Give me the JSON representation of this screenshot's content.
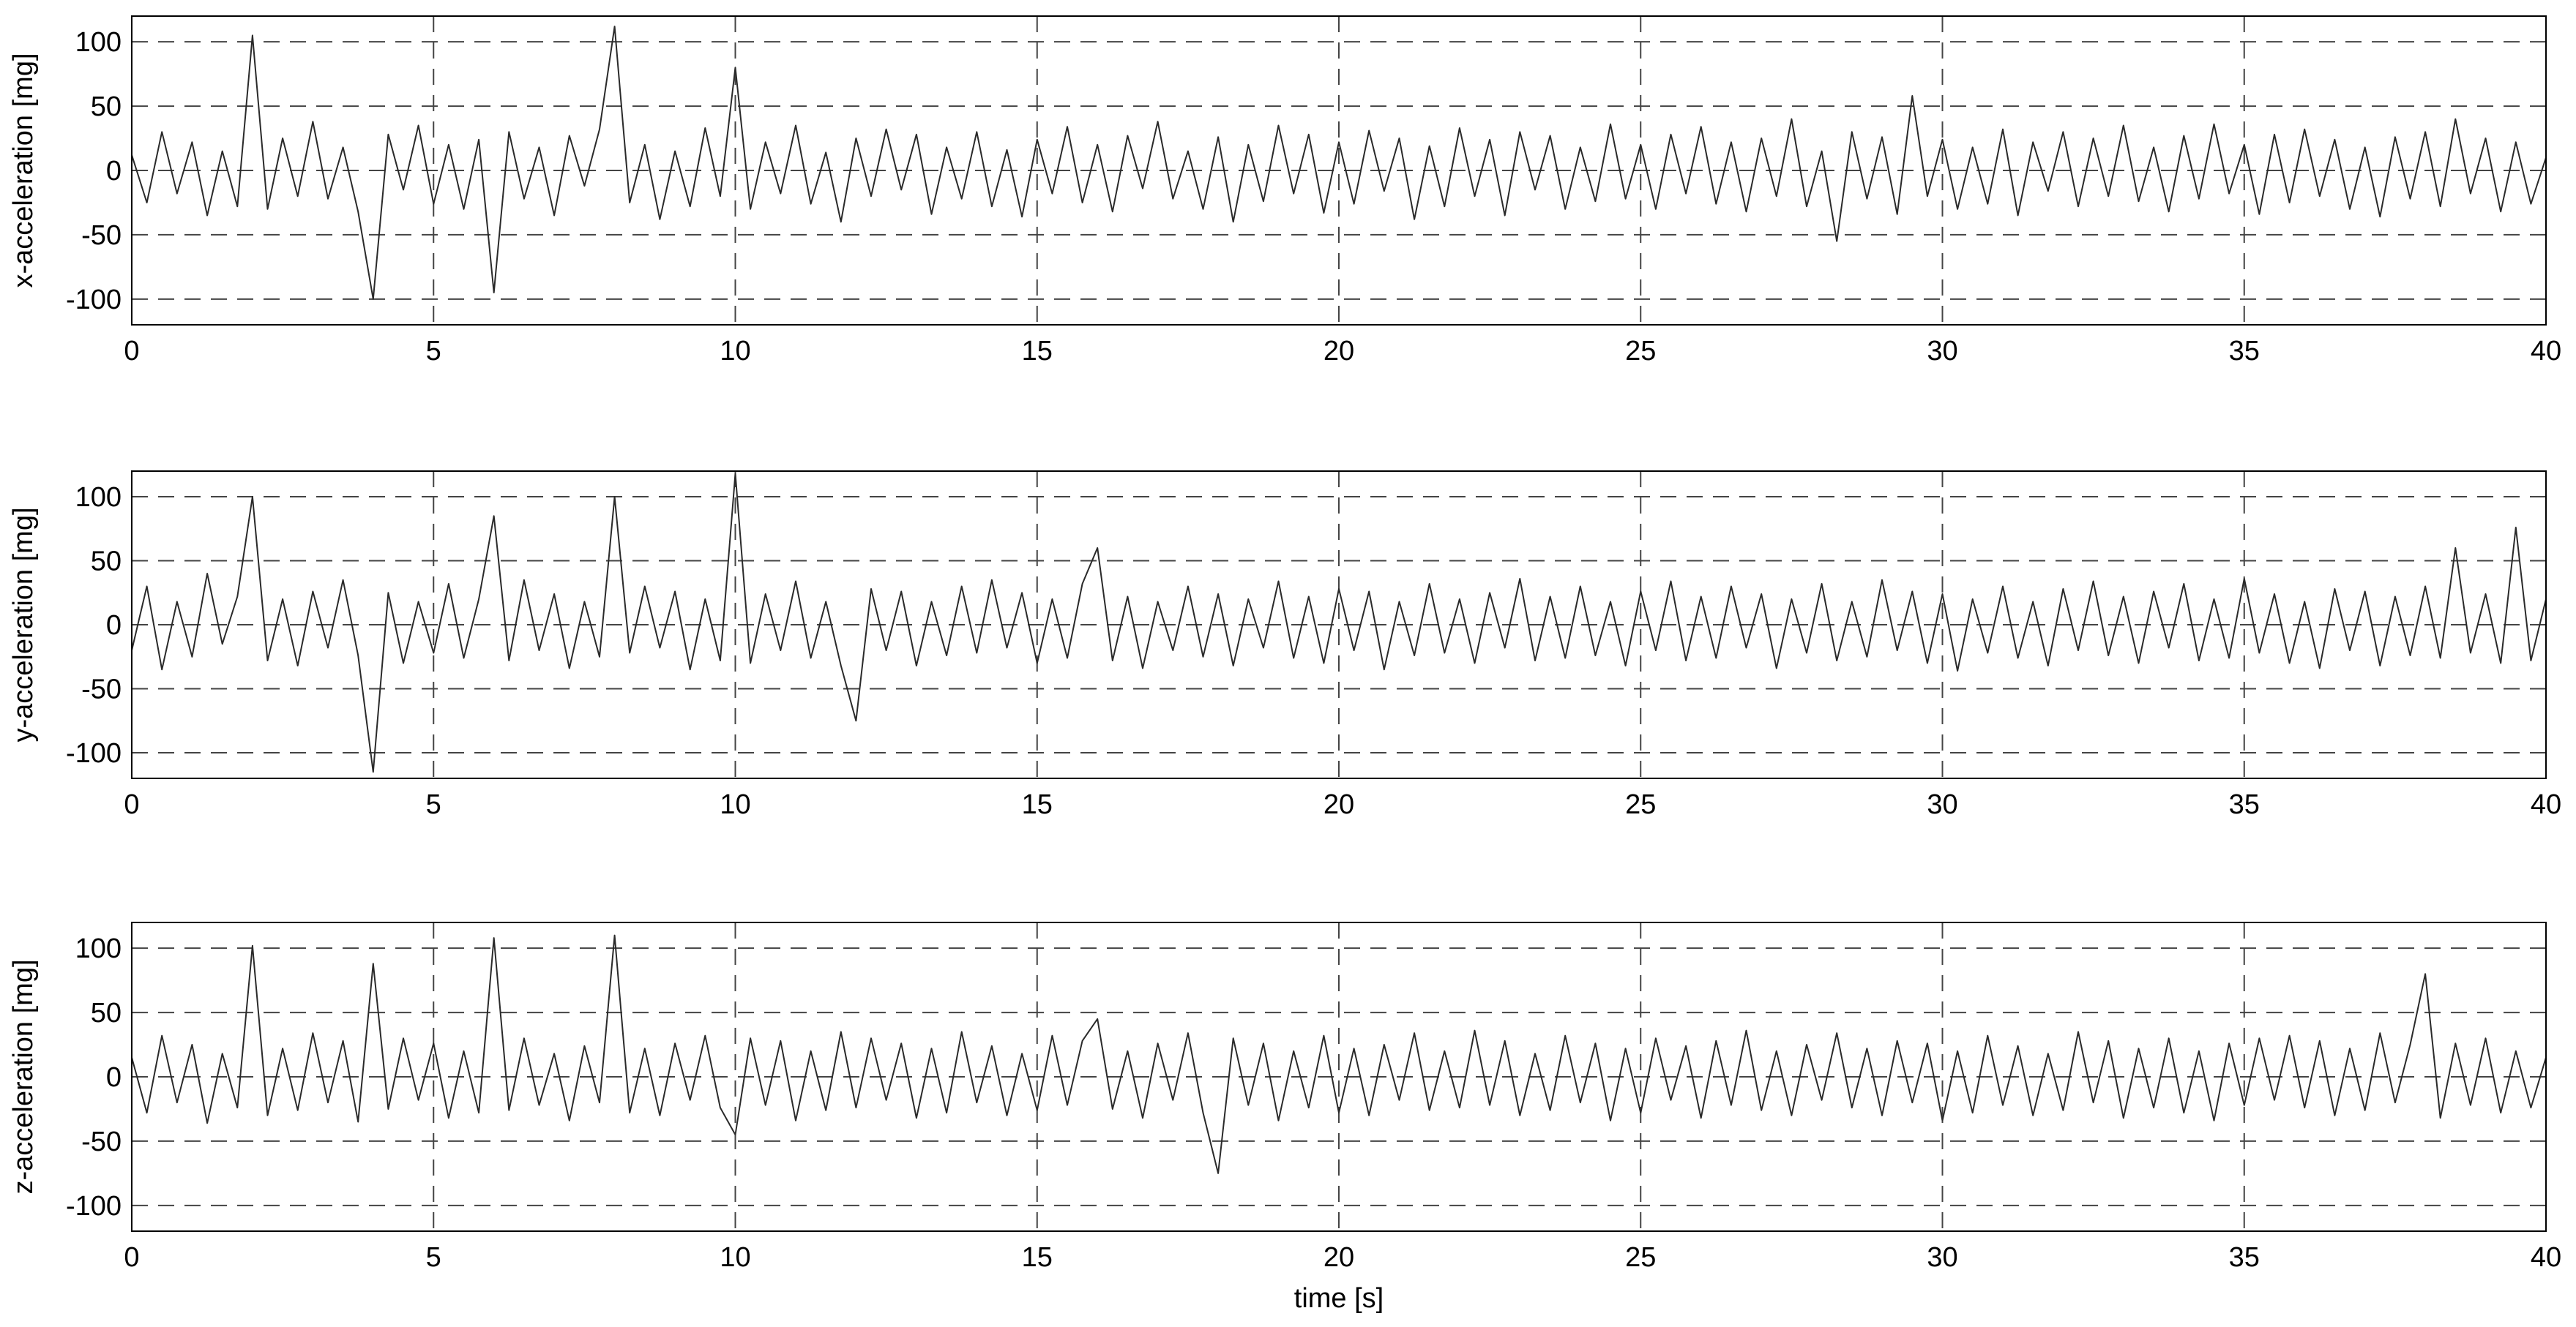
{
  "chart_data": [
    {
      "type": "line",
      "ylabel": "x-acceleration [mg]",
      "color": "#2a2a2a",
      "grid": true,
      "xlim": [
        0,
        40
      ],
      "xticks": [
        0,
        5,
        10,
        15,
        20,
        25,
        30,
        35,
        40
      ],
      "ylim": [
        -120,
        120
      ],
      "yticks": [
        -100,
        -50,
        0,
        50,
        100
      ],
      "x": [
        0,
        0.25,
        0.5,
        0.75,
        1,
        1.25,
        1.5,
        1.75,
        2,
        2.25,
        2.5,
        2.75,
        3,
        3.25,
        3.5,
        3.75,
        4,
        4.25,
        4.5,
        4.75,
        5,
        5.25,
        5.5,
        5.75,
        6,
        6.25,
        6.5,
        6.75,
        7,
        7.25,
        7.5,
        7.75,
        8,
        8.25,
        8.5,
        8.75,
        9,
        9.25,
        9.5,
        9.75,
        10,
        10.25,
        10.5,
        10.75,
        11,
        11.25,
        11.5,
        11.75,
        12,
        12.25,
        12.5,
        12.75,
        13,
        13.25,
        13.5,
        13.75,
        14,
        14.25,
        14.5,
        14.75,
        15,
        15.25,
        15.5,
        15.75,
        16,
        16.25,
        16.5,
        16.75,
        17,
        17.25,
        17.5,
        17.75,
        18,
        18.25,
        18.5,
        18.75,
        19,
        19.25,
        19.5,
        19.75,
        20,
        20.25,
        20.5,
        20.75,
        21,
        21.25,
        21.5,
        21.75,
        22,
        22.25,
        22.5,
        22.75,
        23,
        23.25,
        23.5,
        23.75,
        24,
        24.25,
        24.5,
        24.75,
        25,
        25.25,
        25.5,
        25.75,
        26,
        26.25,
        26.5,
        26.75,
        27,
        27.25,
        27.5,
        27.75,
        28,
        28.25,
        28.5,
        28.75,
        29,
        29.25,
        29.5,
        29.75,
        30,
        30.25,
        30.5,
        30.75,
        31,
        31.25,
        31.5,
        31.75,
        32,
        32.25,
        32.5,
        32.75,
        33,
        33.25,
        33.5,
        33.75,
        34,
        34.25,
        34.5,
        34.75,
        35,
        35.25,
        35.5,
        35.75,
        36,
        36.25,
        36.5,
        36.75,
        37,
        37.25,
        37.5,
        37.75,
        38,
        38.25,
        38.5,
        38.75,
        39,
        39.25,
        39.5,
        39.75,
        40
      ],
      "values": [
        12,
        -25,
        30,
        -18,
        22,
        -35,
        15,
        -28,
        105,
        -30,
        25,
        -20,
        38,
        -22,
        18,
        -32,
        -100,
        28,
        -15,
        35,
        -26,
        20,
        -30,
        24,
        -95,
        30,
        -22,
        18,
        -35,
        27,
        -12,
        32,
        112,
        -25,
        20,
        -38,
        15,
        -28,
        33,
        -20,
        80,
        -30,
        22,
        -18,
        35,
        -26,
        14,
        -40,
        25,
        -20,
        32,
        -15,
        28,
        -34,
        18,
        -22,
        30,
        -28,
        16,
        -36,
        24,
        -18,
        34,
        -25,
        20,
        -32,
        27,
        -14,
        38,
        -22,
        15,
        -30,
        26,
        -40,
        20,
        -24,
        35,
        -18,
        28,
        -33,
        22,
        -26,
        31,
        -16,
        25,
        -38,
        19,
        -28,
        33,
        -20,
        24,
        -35,
        30,
        -15,
        27,
        -30,
        18,
        -24,
        36,
        -22,
        20,
        -30,
        28,
        -18,
        34,
        -26,
        22,
        -32,
        25,
        -20,
        40,
        -28,
        15,
        -55,
        30,
        -22,
        26,
        -34,
        58,
        -20,
        24,
        -30,
        18,
        -26,
        32,
        -35,
        22,
        -16,
        30,
        -28,
        25,
        -20,
        35,
        -24,
        18,
        -32,
        27,
        -22,
        36,
        -18,
        20,
        -34,
        28,
        -25,
        32,
        -20,
        24,
        -30,
        18,
        -36,
        26,
        -22,
        30,
        -28,
        40,
        -18,
        25,
        -32,
        22,
        -26,
        10
      ]
    },
    {
      "type": "line",
      "ylabel": "y-acceleration [mg]",
      "color": "#2a2a2a",
      "grid": true,
      "xlim": [
        0,
        40
      ],
      "xticks": [
        0,
        5,
        10,
        15,
        20,
        25,
        30,
        35,
        40
      ],
      "ylim": [
        -120,
        120
      ],
      "yticks": [
        -100,
        -50,
        0,
        50,
        100
      ],
      "x": [
        0,
        0.25,
        0.5,
        0.75,
        1,
        1.25,
        1.5,
        1.75,
        2,
        2.25,
        2.5,
        2.75,
        3,
        3.25,
        3.5,
        3.75,
        4,
        4.25,
        4.5,
        4.75,
        5,
        5.25,
        5.5,
        5.75,
        6,
        6.25,
        6.5,
        6.75,
        7,
        7.25,
        7.5,
        7.75,
        8,
        8.25,
        8.5,
        8.75,
        9,
        9.25,
        9.5,
        9.75,
        10,
        10.25,
        10.5,
        10.75,
        11,
        11.25,
        11.5,
        11.75,
        12,
        12.25,
        12.5,
        12.75,
        13,
        13.25,
        13.5,
        13.75,
        14,
        14.25,
        14.5,
        14.75,
        15,
        15.25,
        15.5,
        15.75,
        16,
        16.25,
        16.5,
        16.75,
        17,
        17.25,
        17.5,
        17.75,
        18,
        18.25,
        18.5,
        18.75,
        19,
        19.25,
        19.5,
        19.75,
        20,
        20.25,
        20.5,
        20.75,
        21,
        21.25,
        21.5,
        21.75,
        22,
        22.25,
        22.5,
        22.75,
        23,
        23.25,
        23.5,
        23.75,
        24,
        24.25,
        24.5,
        24.75,
        25,
        25.25,
        25.5,
        25.75,
        26,
        26.25,
        26.5,
        26.75,
        27,
        27.25,
        27.5,
        27.75,
        28,
        28.25,
        28.5,
        28.75,
        29,
        29.25,
        29.5,
        29.75,
        30,
        30.25,
        30.5,
        30.75,
        31,
        31.25,
        31.5,
        31.75,
        32,
        32.25,
        32.5,
        32.75,
        33,
        33.25,
        33.5,
        33.75,
        34,
        34.25,
        34.5,
        34.75,
        35,
        35.25,
        35.5,
        35.75,
        36,
        36.25,
        36.5,
        36.75,
        37,
        37.25,
        37.5,
        37.75,
        38,
        38.25,
        38.5,
        38.75,
        39,
        39.25,
        39.5,
        39.75,
        40
      ],
      "values": [
        -20,
        30,
        -35,
        18,
        -25,
        40,
        -15,
        22,
        100,
        -28,
        20,
        -32,
        26,
        -18,
        35,
        -24,
        -115,
        25,
        -30,
        18,
        -22,
        32,
        -26,
        20,
        85,
        -28,
        35,
        -20,
        24,
        -34,
        18,
        -25,
        100,
        -22,
        30,
        -18,
        26,
        -35,
        20,
        -28,
        118,
        -30,
        24,
        -20,
        34,
        -26,
        18,
        -32,
        -75,
        28,
        -20,
        26,
        -32,
        18,
        -24,
        30,
        -22,
        35,
        -18,
        25,
        -30,
        20,
        -26,
        32,
        60,
        -28,
        22,
        -34,
        18,
        -20,
        30,
        -25,
        24,
        -32,
        20,
        -18,
        34,
        -26,
        22,
        -30,
        28,
        -20,
        26,
        -35,
        18,
        -24,
        32,
        -22,
        20,
        -30,
        25,
        -18,
        36,
        -28,
        22,
        -26,
        30,
        -24,
        18,
        -32,
        26,
        -20,
        34,
        -28,
        22,
        -26,
        30,
        -18,
        24,
        -34,
        20,
        -22,
        32,
        -28,
        18,
        -25,
        35,
        -20,
        26,
        -30,
        24,
        -36,
        20,
        -22,
        30,
        -26,
        18,
        -32,
        28,
        -20,
        34,
        -24,
        22,
        -30,
        26,
        -18,
        32,
        -28,
        20,
        -26,
        36,
        -22,
        24,
        -30,
        18,
        -34,
        28,
        -20,
        26,
        -32,
        22,
        -24,
        30,
        -26,
        60,
        -22,
        24,
        -30,
        76,
        -28,
        20
      ]
    },
    {
      "type": "line",
      "ylabel": "z-acceleration [mg]",
      "xlabel": "time [s]",
      "color": "#2a2a2a",
      "grid": true,
      "xlim": [
        0,
        40
      ],
      "xticks": [
        0,
        5,
        10,
        15,
        20,
        25,
        30,
        35,
        40
      ],
      "ylim": [
        -120,
        120
      ],
      "yticks": [
        -100,
        -50,
        0,
        50,
        100
      ],
      "x": [
        0,
        0.25,
        0.5,
        0.75,
        1,
        1.25,
        1.5,
        1.75,
        2,
        2.25,
        2.5,
        2.75,
        3,
        3.25,
        3.5,
        3.75,
        4,
        4.25,
        4.5,
        4.75,
        5,
        5.25,
        5.5,
        5.75,
        6,
        6.25,
        6.5,
        6.75,
        7,
        7.25,
        7.5,
        7.75,
        8,
        8.25,
        8.5,
        8.75,
        9,
        9.25,
        9.5,
        9.75,
        10,
        10.25,
        10.5,
        10.75,
        11,
        11.25,
        11.5,
        11.75,
        12,
        12.25,
        12.5,
        12.75,
        13,
        13.25,
        13.5,
        13.75,
        14,
        14.25,
        14.5,
        14.75,
        15,
        15.25,
        15.5,
        15.75,
        16,
        16.25,
        16.5,
        16.75,
        17,
        17.25,
        17.5,
        17.75,
        18,
        18.25,
        18.5,
        18.75,
        19,
        19.25,
        19.5,
        19.75,
        20,
        20.25,
        20.5,
        20.75,
        21,
        21.25,
        21.5,
        21.75,
        22,
        22.25,
        22.5,
        22.75,
        23,
        23.25,
        23.5,
        23.75,
        24,
        24.25,
        24.5,
        24.75,
        25,
        25.25,
        25.5,
        25.75,
        26,
        26.25,
        26.5,
        26.75,
        27,
        27.25,
        27.5,
        27.75,
        28,
        28.25,
        28.5,
        28.75,
        29,
        29.25,
        29.5,
        29.75,
        30,
        30.25,
        30.5,
        30.75,
        31,
        31.25,
        31.5,
        31.75,
        32,
        32.25,
        32.5,
        32.75,
        33,
        33.25,
        33.5,
        33.75,
        34,
        34.25,
        34.5,
        34.75,
        35,
        35.25,
        35.5,
        35.75,
        36,
        36.25,
        36.5,
        36.75,
        37,
        37.25,
        37.5,
        37.75,
        38,
        38.25,
        38.5,
        38.75,
        39,
        39.25,
        39.5,
        39.75,
        40
      ],
      "values": [
        15,
        -28,
        32,
        -20,
        25,
        -36,
        18,
        -24,
        102,
        -30,
        22,
        -26,
        34,
        -20,
        28,
        -35,
        88,
        -25,
        30,
        -18,
        26,
        -32,
        20,
        -28,
        108,
        -26,
        30,
        -22,
        18,
        -34,
        24,
        -20,
        110,
        -28,
        22,
        -30,
        26,
        -18,
        32,
        -24,
        -45,
        30,
        -22,
        28,
        -34,
        20,
        -26,
        35,
        -24,
        30,
        -18,
        26,
        -32,
        22,
        -28,
        35,
        -20,
        24,
        -30,
        18,
        -26,
        32,
        -22,
        28,
        45,
        -25,
        20,
        -32,
        26,
        -18,
        34,
        -28,
        -75,
        30,
        -22,
        26,
        -34,
        20,
        -24,
        32,
        -28,
        22,
        -30,
        25,
        -18,
        34,
        -26,
        20,
        -24,
        36,
        -22,
        28,
        -30,
        18,
        -26,
        32,
        -20,
        26,
        -34,
        22,
        -28,
        30,
        -18,
        24,
        -32,
        28,
        -22,
        36,
        -26,
        20,
        -30,
        25,
        -18,
        34,
        -24,
        22,
        -30,
        28,
        -20,
        26,
        -34,
        20,
        -28,
        32,
        -22,
        24,
        -30,
        18,
        -26,
        35,
        -20,
        28,
        -32,
        22,
        -24,
        30,
        -28,
        20,
        -34,
        26,
        -22,
        30,
        -18,
        32,
        -24,
        28,
        -30,
        22,
        -26,
        34,
        -20,
        25,
        80,
        -32,
        26,
        -22,
        30,
        -28,
        20,
        -24,
        15
      ]
    }
  ]
}
